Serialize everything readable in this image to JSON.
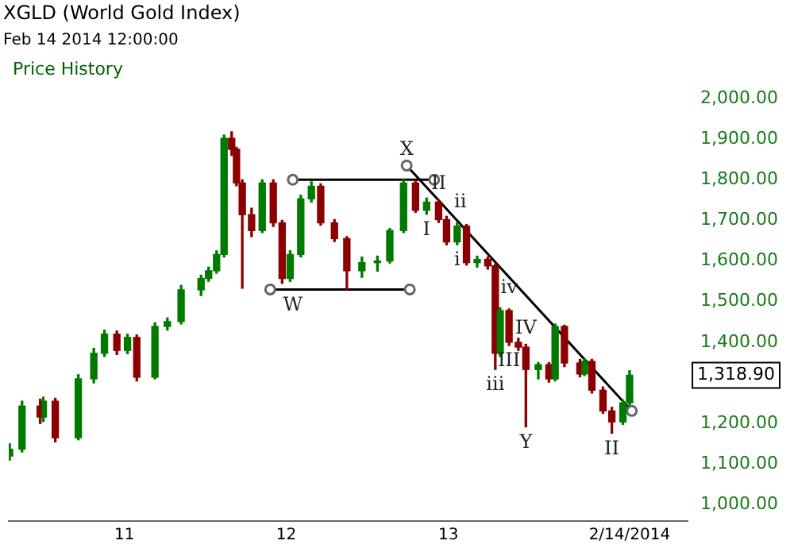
{
  "chart_data": {
    "type": "candlestick",
    "title": "XGLD (World Gold Index)",
    "subtitle": "Feb 14 2014 12:00:00",
    "legend_title": "Price History",
    "x": [
      "2010-04-17",
      "2010-05-15",
      "2010-06-25",
      "2010-07-02",
      "2010-07-29",
      "2010-09-19",
      "2010-10-24",
      "2010-11-17",
      "2010-12-15",
      "2011-01-08",
      "2011-01-29",
      "2011-03-11",
      "2011-04-08",
      "2011-05-09",
      "2011-06-23",
      "2011-07-10",
      "2011-07-28",
      "2011-08-14",
      "2011-08-31",
      "2011-09-11",
      "2011-09-24",
      "2011-10-15",
      "2011-11-08",
      "2011-12-03",
      "2011-12-23",
      "2012-01-10",
      "2012-02-03",
      "2012-02-27",
      "2012-03-19",
      "2012-04-19",
      "2012-05-17",
      "2012-06-20",
      "2012-07-25",
      "2012-08-22",
      "2012-09-22",
      "2012-10-19",
      "2012-11-13",
      "2012-12-10",
      "2012-12-28",
      "2013-01-21",
      "2013-02-11",
      "2013-03-07",
      "2013-03-31",
      "2013-04-17",
      "2013-04-28",
      "2013-05-18",
      "2013-06-08",
      "2013-06-25",
      "2013-07-23",
      "2013-08-16",
      "2013-08-30",
      "2013-09-20",
      "2013-10-25",
      "2013-11-04",
      "2013-11-21",
      "2013-12-16",
      "2014-01-05",
      "2014-01-30",
      "2014-02-14"
    ],
    "ohlc": [
      [
        1120,
        1150,
        1110,
        1137
      ],
      [
        1137,
        1255,
        1130,
        1243
      ],
      [
        1243,
        1260,
        1200,
        1216
      ],
      [
        1216,
        1265,
        1205,
        1255
      ],
      [
        1255,
        1262,
        1155,
        1165
      ],
      [
        1165,
        1320,
        1160,
        1310
      ],
      [
        1310,
        1385,
        1300,
        1373
      ],
      [
        1373,
        1430,
        1365,
        1420
      ],
      [
        1420,
        1428,
        1370,
        1380
      ],
      [
        1380,
        1420,
        1372,
        1412
      ],
      [
        1412,
        1418,
        1305,
        1314
      ],
      [
        1314,
        1448,
        1310,
        1439
      ],
      [
        1439,
        1460,
        1430,
        1451
      ],
      [
        1451,
        1540,
        1445,
        1529
      ],
      [
        1529,
        1565,
        1515,
        1557
      ],
      [
        1557,
        1585,
        1550,
        1576
      ],
      [
        1576,
        1625,
        1570,
        1616
      ],
      [
        1616,
        1910,
        1610,
        1902
      ],
      [
        1902,
        1918,
        1860,
        1875
      ],
      [
        1875,
        1880,
        1785,
        1792
      ],
      [
        1792,
        1800,
        1533,
        1714
      ],
      [
        1714,
        1730,
        1660,
        1675
      ],
      [
        1675,
        1800,
        1670,
        1792
      ],
      [
        1792,
        1800,
        1685,
        1694
      ],
      [
        1694,
        1700,
        1545,
        1557
      ],
      [
        1557,
        1625,
        1550,
        1616
      ],
      [
        1616,
        1762,
        1610,
        1753
      ],
      [
        1753,
        1795,
        1745,
        1784
      ],
      [
        1784,
        1790,
        1688,
        1694
      ],
      [
        1694,
        1702,
        1648,
        1655
      ],
      [
        1655,
        1660,
        1530,
        1576
      ],
      [
        1576,
        1610,
        1560,
        1596
      ],
      [
        1596,
        1612,
        1575,
        1600
      ],
      [
        1600,
        1680,
        1595,
        1675
      ],
      [
        1675,
        1800,
        1670,
        1792
      ],
      [
        1792,
        1798,
        1720,
        1725
      ],
      [
        1725,
        1755,
        1715,
        1745
      ],
      [
        1745,
        1750,
        1695,
        1702
      ],
      [
        1702,
        1710,
        1640,
        1647
      ],
      [
        1647,
        1695,
        1640,
        1686
      ],
      [
        1686,
        1690,
        1590,
        1596
      ],
      [
        1596,
        1612,
        1585,
        1604
      ],
      [
        1604,
        1610,
        1580,
        1588
      ],
      [
        1588,
        1592,
        1333,
        1373
      ],
      [
        1373,
        1485,
        1365,
        1478
      ],
      [
        1478,
        1482,
        1392,
        1400
      ],
      [
        1400,
        1410,
        1380,
        1388
      ],
      [
        1388,
        1395,
        1192,
        1333
      ],
      [
        1333,
        1350,
        1310,
        1345
      ],
      [
        1345,
        1350,
        1302,
        1310
      ],
      [
        1310,
        1445,
        1305,
        1439
      ],
      [
        1439,
        1442,
        1340,
        1349
      ],
      [
        1349,
        1358,
        1315,
        1322
      ],
      [
        1322,
        1360,
        1318,
        1353
      ],
      [
        1353,
        1358,
        1275,
        1282
      ],
      [
        1282,
        1290,
        1225,
        1231
      ],
      [
        1231,
        1240,
        1176,
        1204
      ],
      [
        1204,
        1258,
        1198,
        1251
      ],
      [
        1251,
        1330,
        1245,
        1318.9
      ]
    ],
    "series": [
      {
        "type": "line",
        "color": "#000000",
        "x": [
          "2012-01-16",
          "2012-11-30"
        ],
        "values": [
          1800,
          1800
        ]
      },
      {
        "type": "line",
        "color": "#000000",
        "x": [
          "2011-11-26",
          "2012-10-06"
        ],
        "values": [
          1530,
          1530
        ]
      },
      {
        "type": "line",
        "color": "#000000",
        "x": [
          "2012-09-29",
          "2014-02-19"
        ],
        "values": [
          1835,
          1231
        ]
      }
    ],
    "marker": "circle",
    "xlim": [
      "2010-04-15",
      "2014-06-25"
    ],
    "xticks": [
      {
        "value": "2011-01-01",
        "label": "11"
      },
      {
        "value": "2012-01-01",
        "label": "12"
      },
      {
        "value": "2013-01-01",
        "label": "13"
      },
      {
        "value": "2014-02-14",
        "label": "2/14/2014"
      }
    ],
    "ylim": [
      960,
      2000
    ],
    "yticks": [
      {
        "value": 1000,
        "label": "1,000.00"
      },
      {
        "value": 1100,
        "label": "1,100.00"
      },
      {
        "value": 1200,
        "label": "1,200.00"
      },
      {
        "value": 1400,
        "label": "1,400.00"
      },
      {
        "value": 1500,
        "label": "1,500.00"
      },
      {
        "value": 1600,
        "label": "1,600.00"
      },
      {
        "value": 1700,
        "label": "1,700.00"
      },
      {
        "value": 1800,
        "label": "1,800.00"
      },
      {
        "value": 1900,
        "label": "1,900.00"
      },
      {
        "value": 2000,
        "label": "2,000.00"
      }
    ],
    "grid": false,
    "annotations": [
      {
        "text": "W",
        "x": "2012-01-16",
        "y": 1530
      },
      {
        "text": "X",
        "x": "2012-09-29",
        "y": 1835
      },
      {
        "text": "II",
        "x": "2012-12-10",
        "y": 1750
      },
      {
        "text": "ii",
        "x": "2013-01-28",
        "y": 1706
      },
      {
        "text": "I",
        "x": "2012-11-13",
        "y": 1715
      },
      {
        "text": "i",
        "x": "2013-01-21",
        "y": 1640
      },
      {
        "text": "iv",
        "x": "2013-05-18",
        "y": 1494
      },
      {
        "text": "IV",
        "x": "2013-06-25",
        "y": 1395
      },
      {
        "text": "iii",
        "x": "2013-04-17",
        "y": 1333
      },
      {
        "text": "III",
        "x": "2013-05-18",
        "y": 1392
      },
      {
        "text": "Y",
        "x": "2013-06-25",
        "y": 1192
      },
      {
        "text": "II",
        "x": "2014-01-05",
        "y": 1176
      },
      "1,318.90"
    ]
  }
}
